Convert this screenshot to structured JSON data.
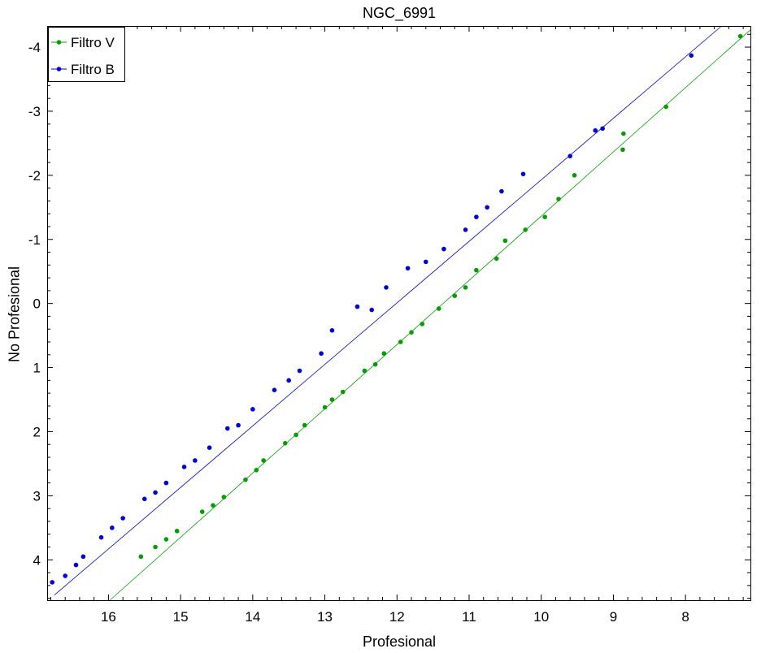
{
  "chart_data": {
    "type": "scatter",
    "title": "NGC_6991",
    "xlabel": "Profesional",
    "ylabel": "No Profesional",
    "xlim": [
      16.85,
      7.1
    ],
    "ylim": [
      4.63,
      -4.33
    ],
    "x_ticks": [
      16,
      15,
      14,
      13,
      12,
      11,
      10,
      9,
      8
    ],
    "y_ticks": [
      4,
      3,
      2,
      1,
      0,
      -1,
      -2,
      -3,
      -4
    ],
    "x_tick_labels": [
      "16",
      "15",
      "14",
      "13",
      "12",
      "11",
      "10",
      "9",
      "8"
    ],
    "y_tick_labels": [
      "4",
      "3",
      "2",
      "1",
      "0",
      "-1",
      "-2",
      "-3",
      "-4"
    ],
    "grid": false,
    "legend_position": "top-left",
    "series": [
      {
        "name": "Filtro V",
        "color": "#00a000",
        "fit_line": {
          "x": [
            15.98,
            7.1
          ],
          "y": [
            4.63,
            -4.27
          ]
        },
        "points": [
          [
            7.24,
            -4.17
          ],
          [
            8.27,
            -3.07
          ],
          [
            8.86,
            -2.65
          ],
          [
            8.87,
            -2.4
          ],
          [
            9.54,
            -2.0
          ],
          [
            9.76,
            -1.63
          ],
          [
            10.22,
            -1.15
          ],
          [
            10.5,
            -0.98
          ],
          [
            10.9,
            -0.52
          ],
          [
            11.05,
            -0.25
          ],
          [
            11.42,
            0.08
          ],
          [
            11.65,
            0.32
          ],
          [
            11.95,
            0.6
          ],
          [
            12.18,
            0.78
          ],
          [
            12.45,
            1.05
          ],
          [
            12.75,
            1.38
          ],
          [
            13.0,
            1.62
          ],
          [
            13.28,
            1.9
          ],
          [
            13.55,
            2.18
          ],
          [
            13.85,
            2.45
          ],
          [
            14.1,
            2.75
          ],
          [
            14.4,
            3.02
          ],
          [
            14.7,
            3.25
          ],
          [
            15.05,
            3.55
          ],
          [
            15.35,
            3.8
          ],
          [
            15.55,
            3.95
          ],
          [
            9.95,
            -1.35
          ],
          [
            10.62,
            -0.7
          ],
          [
            11.2,
            -0.12
          ],
          [
            11.8,
            0.45
          ],
          [
            12.3,
            0.95
          ],
          [
            12.9,
            1.5
          ],
          [
            13.4,
            2.05
          ],
          [
            13.95,
            2.6
          ],
          [
            14.55,
            3.15
          ],
          [
            15.2,
            3.68
          ]
        ]
      },
      {
        "name": "Filtro B",
        "color": "#0000e0",
        "fit_line": {
          "x": [
            16.75,
            7.5
          ],
          "y": [
            4.55,
            -4.33
          ]
        },
        "points": [
          [
            7.92,
            -3.87
          ],
          [
            9.15,
            -2.73
          ],
          [
            9.25,
            -2.7
          ],
          [
            10.25,
            -2.02
          ],
          [
            10.55,
            -1.75
          ],
          [
            11.05,
            -1.15
          ],
          [
            11.35,
            -0.85
          ],
          [
            11.85,
            -0.55
          ],
          [
            12.15,
            -0.25
          ],
          [
            12.55,
            0.05
          ],
          [
            12.9,
            0.42
          ],
          [
            13.05,
            0.78
          ],
          [
            13.35,
            1.05
          ],
          [
            13.7,
            1.35
          ],
          [
            14.0,
            1.65
          ],
          [
            14.35,
            1.95
          ],
          [
            14.6,
            2.25
          ],
          [
            14.95,
            2.55
          ],
          [
            15.2,
            2.8
          ],
          [
            15.5,
            3.05
          ],
          [
            15.8,
            3.35
          ],
          [
            16.1,
            3.65
          ],
          [
            16.35,
            3.95
          ],
          [
            16.6,
            4.25
          ],
          [
            16.78,
            4.35
          ],
          [
            10.9,
            -1.35
          ],
          [
            11.6,
            -0.65
          ],
          [
            12.35,
            0.1
          ],
          [
            13.5,
            1.2
          ],
          [
            14.2,
            1.9
          ],
          [
            14.8,
            2.45
          ],
          [
            15.35,
            2.95
          ],
          [
            15.95,
            3.5
          ],
          [
            16.45,
            4.08
          ],
          [
            9.6,
            -2.3
          ],
          [
            10.75,
            -1.5
          ]
        ]
      }
    ]
  }
}
